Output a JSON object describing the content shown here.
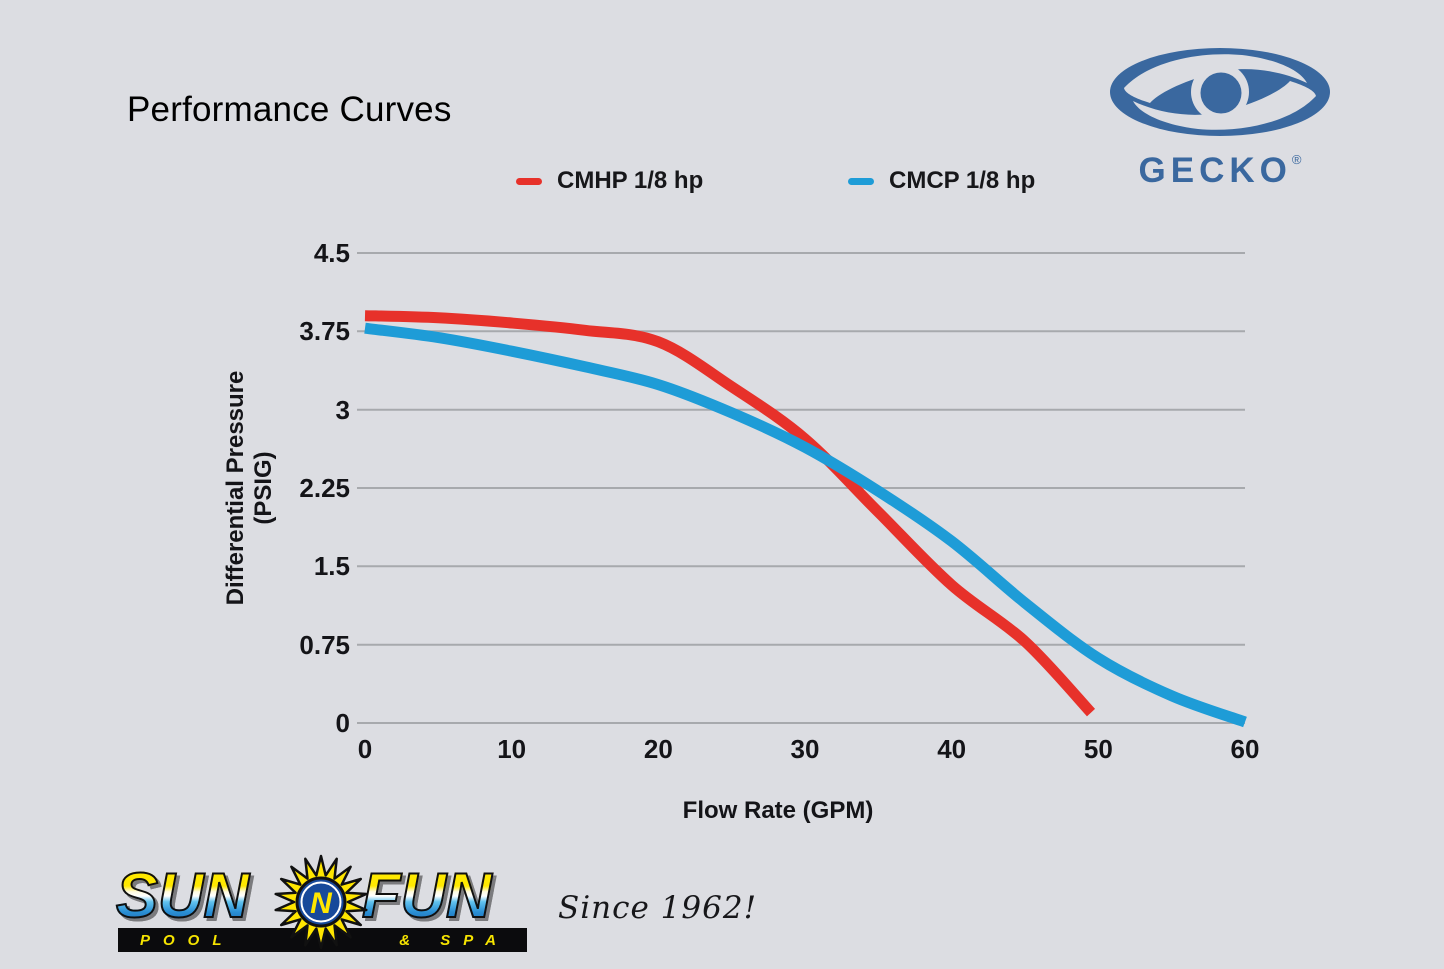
{
  "colors": {
    "background": "#dcdde2",
    "grid": "#a7a9ad",
    "text": "#101014",
    "gecko_blue": "#3a689f",
    "cmhp_red": "#e7312a",
    "cmcp_blue": "#1e9cd7"
  },
  "header": {
    "title": "Performance Curves"
  },
  "gecko_logo": {
    "wordmark": "GECKO",
    "registered": "®"
  },
  "chart_data": {
    "type": "line",
    "title": "Performance Curves",
    "xlabel": "Flow Rate (GPM)",
    "ylabel": "Differential Pressure (PSIG)",
    "xlim": [
      0,
      60
    ],
    "ylim": [
      0,
      4.5
    ],
    "xticks": [
      0,
      10,
      20,
      30,
      40,
      50,
      60
    ],
    "xtick_labels": [
      "0",
      "10",
      "20",
      "30",
      "40",
      "50",
      "60"
    ],
    "yticks": [
      0,
      0.75,
      1.5,
      2.25,
      3,
      3.75,
      4.5
    ],
    "ytick_labels": [
      "0",
      "0.75",
      "1.5",
      "2.25",
      "3",
      "3.75",
      "4.5"
    ],
    "grid": "horizontal-only",
    "legend_position": "top-center",
    "series": [
      {
        "name": "CMHP 1/8 hp",
        "color": "#e7312a",
        "points": [
          [
            0,
            3.9
          ],
          [
            5,
            3.88
          ],
          [
            10,
            3.83
          ],
          [
            15,
            3.76
          ],
          [
            20,
            3.65
          ],
          [
            25,
            3.22
          ],
          [
            30,
            2.72
          ],
          [
            35,
            2.02
          ],
          [
            40,
            1.32
          ],
          [
            45,
            0.78
          ],
          [
            49.5,
            0.1
          ]
        ]
      },
      {
        "name": "CMCP 1/8 hp",
        "color": "#1e9cd7",
        "points": [
          [
            0,
            3.78
          ],
          [
            5,
            3.69
          ],
          [
            10,
            3.56
          ],
          [
            15,
            3.41
          ],
          [
            20,
            3.24
          ],
          [
            25,
            2.97
          ],
          [
            30,
            2.64
          ],
          [
            35,
            2.22
          ],
          [
            40,
            1.74
          ],
          [
            45,
            1.15
          ],
          [
            50,
            0.62
          ],
          [
            55,
            0.26
          ],
          [
            60,
            0.01
          ]
        ]
      }
    ]
  },
  "footer": {
    "brand": {
      "sun": "SUN",
      "n": "N",
      "fun": "FUN",
      "pool": "POOL",
      "spa": "& SPA"
    },
    "tagline": "Since 1962!"
  }
}
